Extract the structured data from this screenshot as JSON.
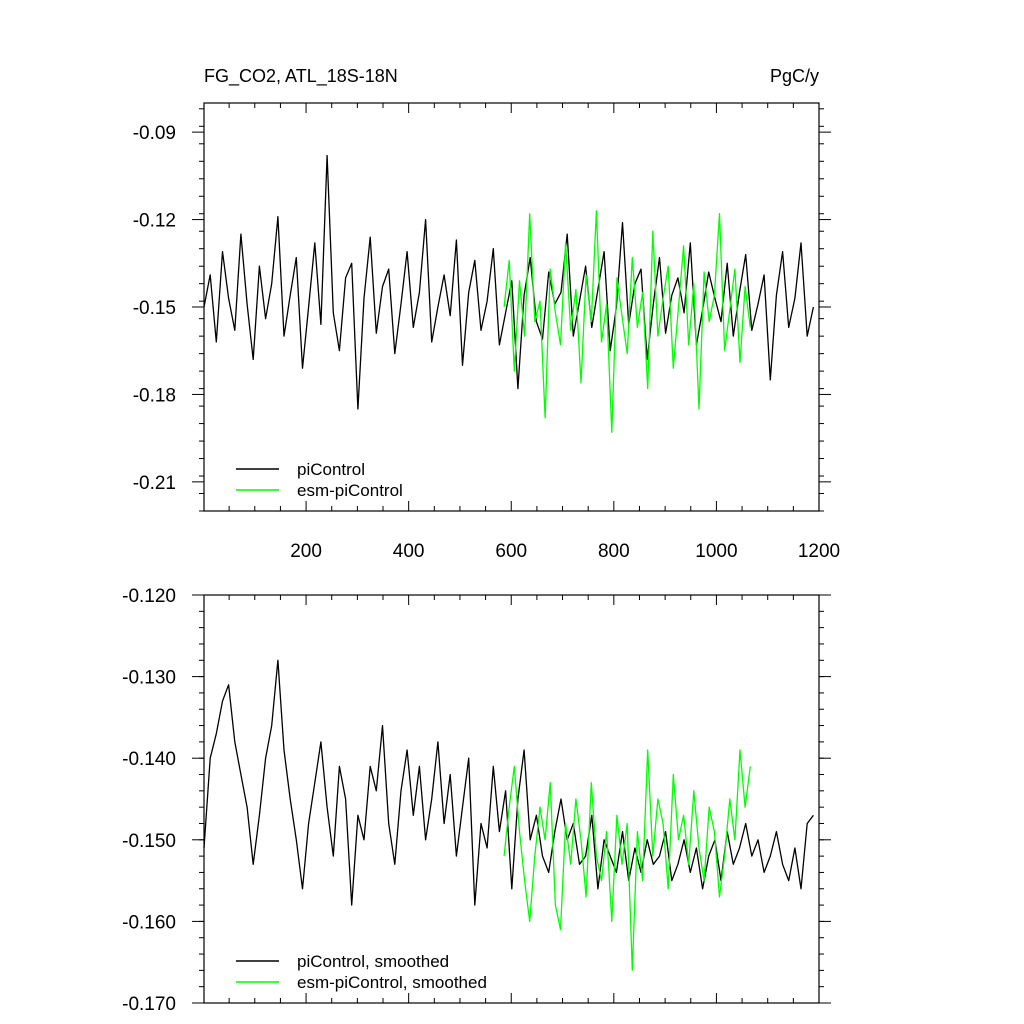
{
  "colors": {
    "piControl": "#000000",
    "esm_piControl": "#00ff00"
  },
  "chart_data": [
    {
      "type": "line",
      "title": "FG_CO2, ATL_18S-18N",
      "units": "PgC/y",
      "xlim": [
        1,
        1200
      ],
      "ylim": [
        -0.22,
        -0.08
      ],
      "x_ticks": [
        200,
        400,
        600,
        800,
        1000,
        1200
      ],
      "x_tick_labels": [
        "200",
        "400",
        "600",
        "800",
        "1000",
        "1200"
      ],
      "y_ticks": [
        -0.09,
        -0.12,
        -0.15,
        -0.18,
        -0.21
      ],
      "y_tick_labels": [
        "-0.09",
        "-0.12",
        "-0.15",
        "-0.18",
        "-0.21"
      ],
      "legend_position": "bottom-left",
      "series": [
        {
          "name": "piControl",
          "color": "#000000",
          "x_start": 1,
          "x_step": 12,
          "values": [
            -0.15,
            -0.139,
            -0.162,
            -0.131,
            -0.147,
            -0.158,
            -0.125,
            -0.149,
            -0.168,
            -0.136,
            -0.154,
            -0.142,
            -0.119,
            -0.16,
            -0.146,
            -0.133,
            -0.171,
            -0.15,
            -0.128,
            -0.156,
            -0.098,
            -0.152,
            -0.165,
            -0.14,
            -0.135,
            -0.185,
            -0.147,
            -0.126,
            -0.159,
            -0.143,
            -0.137,
            -0.166,
            -0.149,
            -0.131,
            -0.157,
            -0.145,
            -0.12,
            -0.162,
            -0.15,
            -0.139,
            -0.153,
            -0.127,
            -0.17,
            -0.145,
            -0.134,
            -0.158,
            -0.148,
            -0.13,
            -0.163,
            -0.152,
            -0.141,
            -0.178,
            -0.146,
            -0.133,
            -0.155,
            -0.161,
            -0.138,
            -0.149,
            -0.145,
            -0.125,
            -0.16,
            -0.148,
            -0.136,
            -0.157,
            -0.144,
            -0.131,
            -0.165,
            -0.15,
            -0.121,
            -0.156,
            -0.142,
            -0.137,
            -0.168,
            -0.149,
            -0.133,
            -0.159,
            -0.146,
            -0.14,
            -0.152,
            -0.128,
            -0.163,
            -0.151,
            -0.138,
            -0.147,
            -0.155,
            -0.135,
            -0.16,
            -0.145,
            -0.132,
            -0.158,
            -0.149,
            -0.139,
            -0.175,
            -0.146,
            -0.131,
            -0.157,
            -0.147,
            -0.128,
            -0.16,
            -0.15
          ]
        },
        {
          "name": "esm-piControl",
          "color": "#00ff00",
          "x_start": 586,
          "x_step": 10,
          "values": [
            -0.15,
            -0.134,
            -0.172,
            -0.141,
            -0.16,
            -0.118,
            -0.155,
            -0.148,
            -0.188,
            -0.137,
            -0.152,
            -0.163,
            -0.128,
            -0.158,
            -0.144,
            -0.176,
            -0.139,
            -0.155,
            -0.117,
            -0.162,
            -0.149,
            -0.193,
            -0.14,
            -0.153,
            -0.166,
            -0.133,
            -0.157,
            -0.145,
            -0.178,
            -0.124,
            -0.16,
            -0.147,
            -0.136,
            -0.171,
            -0.15,
            -0.129,
            -0.163,
            -0.142,
            -0.185,
            -0.138,
            -0.155,
            -0.146,
            -0.118,
            -0.165,
            -0.151,
            -0.137,
            -0.169,
            -0.143,
            -0.157
          ]
        }
      ]
    },
    {
      "type": "line",
      "xlim": [
        1,
        1200
      ],
      "ylim": [
        -0.17,
        -0.12
      ],
      "x_ticks": [
        200,
        400,
        600,
        800,
        1000,
        1200
      ],
      "y_ticks": [
        -0.12,
        -0.13,
        -0.14,
        -0.15,
        -0.16,
        -0.17
      ],
      "y_tick_labels": [
        "-0.120",
        "-0.130",
        "-0.140",
        "-0.150",
        "-0.160",
        "-0.170"
      ],
      "legend_position": "bottom-left",
      "series": [
        {
          "name": "piControl, smoothed",
          "color": "#000000",
          "x_start": 1,
          "x_step": 12,
          "values": [
            -0.151,
            -0.14,
            -0.137,
            -0.133,
            -0.131,
            -0.138,
            -0.142,
            -0.146,
            -0.153,
            -0.147,
            -0.14,
            -0.136,
            -0.128,
            -0.139,
            -0.145,
            -0.15,
            -0.156,
            -0.148,
            -0.143,
            -0.138,
            -0.146,
            -0.152,
            -0.141,
            -0.145,
            -0.158,
            -0.147,
            -0.15,
            -0.141,
            -0.144,
            -0.136,
            -0.148,
            -0.153,
            -0.144,
            -0.139,
            -0.147,
            -0.141,
            -0.15,
            -0.145,
            -0.138,
            -0.148,
            -0.142,
            -0.152,
            -0.146,
            -0.14,
            -0.158,
            -0.148,
            -0.151,
            -0.141,
            -0.149,
            -0.144,
            -0.156,
            -0.145,
            -0.139,
            -0.15,
            -0.147,
            -0.152,
            -0.154,
            -0.149,
            -0.145,
            -0.15,
            -0.148,
            -0.153,
            -0.152,
            -0.147,
            -0.156,
            -0.15,
            -0.152,
            -0.154,
            -0.149,
            -0.155,
            -0.151,
            -0.154,
            -0.15,
            -0.153,
            -0.152,
            -0.149,
            -0.155,
            -0.153,
            -0.15,
            -0.154,
            -0.151,
            -0.156,
            -0.152,
            -0.15,
            -0.155,
            -0.149,
            -0.153,
            -0.151,
            -0.148,
            -0.152,
            -0.15,
            -0.154,
            -0.152,
            -0.149,
            -0.153,
            -0.155,
            -0.151,
            -0.156,
            -0.148,
            -0.147
          ]
        },
        {
          "name": "esm-piControl, smoothed",
          "color": "#00ff00",
          "x_start": 586,
          "x_step": 10,
          "values": [
            -0.152,
            -0.146,
            -0.141,
            -0.149,
            -0.155,
            -0.16,
            -0.152,
            -0.146,
            -0.15,
            -0.143,
            -0.158,
            -0.161,
            -0.148,
            -0.153,
            -0.145,
            -0.15,
            -0.157,
            -0.143,
            -0.152,
            -0.155,
            -0.149,
            -0.16,
            -0.147,
            -0.153,
            -0.148,
            -0.166,
            -0.149,
            -0.155,
            -0.139,
            -0.152,
            -0.145,
            -0.148,
            -0.156,
            -0.142,
            -0.15,
            -0.147,
            -0.153,
            -0.144,
            -0.151,
            -0.155,
            -0.146,
            -0.149,
            -0.157,
            -0.152,
            -0.145,
            -0.15,
            -0.139,
            -0.146,
            -0.141
          ]
        }
      ]
    }
  ]
}
